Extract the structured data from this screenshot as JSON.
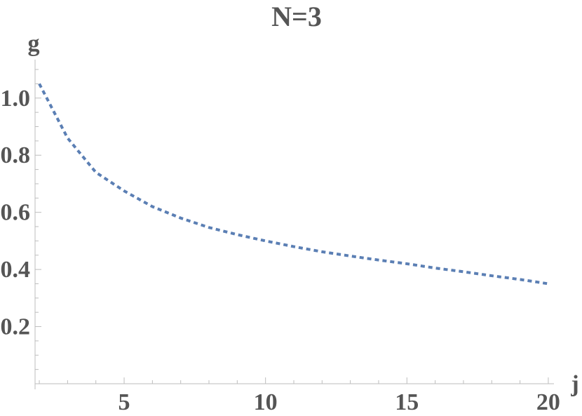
{
  "chart_data": {
    "type": "line",
    "title": "N=3",
    "xlabel": "j",
    "ylabel": "g",
    "xlim": [
      1.85,
      20.2
    ],
    "ylim": [
      0,
      1.11
    ],
    "x_ticks": [
      5,
      10,
      15,
      20
    ],
    "x_tick_labels": [
      "5",
      "10",
      "15",
      "20"
    ],
    "y_ticks": [
      0.2,
      0.4,
      0.6,
      0.8,
      1.0
    ],
    "y_tick_labels": [
      "0.2",
      "0.4",
      "0.6",
      "0.8",
      "1.0"
    ],
    "x_minor_step": 1,
    "y_minor_step": 0.05,
    "grid": false,
    "series": [
      {
        "color": "#5b7fb4",
        "style": "dashed",
        "x": [
          2,
          3,
          4,
          5,
          6,
          7,
          8,
          9,
          10,
          11,
          12,
          13,
          14,
          15,
          16,
          17,
          18,
          19,
          20
        ],
        "y": [
          1.05,
          0.86,
          0.74,
          0.675,
          0.62,
          0.58,
          0.547,
          0.522,
          0.5,
          0.48,
          0.462,
          0.447,
          0.433,
          0.42,
          0.405,
          0.392,
          0.378,
          0.365,
          0.35
        ]
      }
    ]
  }
}
